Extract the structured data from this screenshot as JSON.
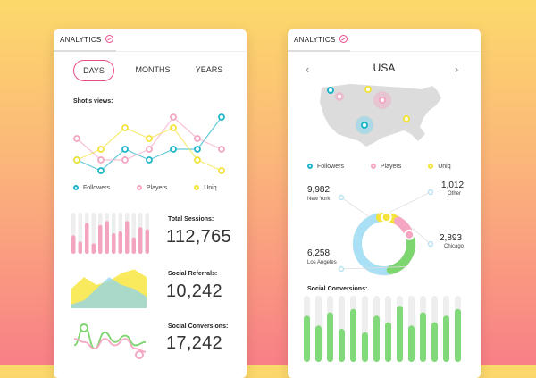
{
  "left_card": {
    "header_title": "ANALYTICS",
    "tabs": [
      {
        "label": "DAYS",
        "active": true
      },
      {
        "label": "MONTHS",
        "active": false
      },
      {
        "label": "YEARS",
        "active": false
      }
    ],
    "views_label": "Shot's views:",
    "legend": [
      {
        "label": "Followers",
        "color": "#1fb5c9"
      },
      {
        "label": "Players",
        "color": "#f4a6c3"
      },
      {
        "label": "Uniq",
        "color": "#f4e33a"
      }
    ],
    "stats": [
      {
        "label": "Total Sessions:",
        "value": "112,765"
      },
      {
        "label": "Social Referrals:",
        "value": "10,242"
      },
      {
        "label": "Social Conversions:",
        "value": "17,242"
      }
    ]
  },
  "right_card": {
    "header_title": "ANALYTICS",
    "country": "USA",
    "legend": [
      {
        "label": "Followers",
        "color": "#1fb5c9"
      },
      {
        "label": "Players",
        "color": "#f4a6c3"
      },
      {
        "label": "Uniq",
        "color": "#f4e33a"
      }
    ],
    "cities": [
      {
        "value": "9,982",
        "name": "New York"
      },
      {
        "value": "1,012",
        "name": "Other"
      },
      {
        "value": "2,893",
        "name": "Chicago"
      },
      {
        "value": "6,258",
        "name": "Los Angeles"
      }
    ],
    "conversions_label": "Social Conversions:"
  },
  "colors": {
    "accent": "#ea4c89",
    "followers": "#1fb5c9",
    "players": "#f4a6c3",
    "uniq": "#f4e33a",
    "green": "#7dd56f",
    "blue_light": "#a9e0f5"
  },
  "chart_data": [
    {
      "type": "line",
      "title": "Shot's views:",
      "x": [
        1,
        2,
        3,
        4,
        5,
        6,
        7
      ],
      "series": [
        {
          "name": "Followers",
          "values": [
            2,
            1,
            3,
            2,
            3,
            3,
            6
          ]
        },
        {
          "name": "Players",
          "values": [
            4,
            2,
            2,
            3,
            6,
            4,
            3
          ]
        },
        {
          "name": "Uniq",
          "values": [
            2,
            3,
            5,
            4,
            5,
            2,
            1
          ]
        }
      ]
    },
    {
      "type": "bar",
      "title": "Total Sessions:",
      "values": [
        45,
        30,
        75,
        25,
        70,
        80,
        50,
        55,
        80,
        40,
        65,
        60
      ]
    },
    {
      "type": "area",
      "title": "Social Referrals:",
      "series": [
        {
          "name": "yellow",
          "values": [
            5,
            8,
            6,
            7,
            9,
            10,
            8
          ]
        },
        {
          "name": "blue",
          "values": [
            1,
            2,
            5,
            8,
            6,
            5,
            3
          ]
        }
      ]
    },
    {
      "type": "line",
      "title": "Social Conversions:",
      "series": [
        {
          "name": "green",
          "values": [
            4,
            10,
            3,
            8,
            5,
            7,
            4,
            5
          ]
        },
        {
          "name": "pink",
          "values": [
            6,
            5,
            3,
            6,
            4,
            6,
            3,
            2
          ]
        }
      ]
    },
    {
      "type": "pie",
      "title": "",
      "categories": [
        "New York",
        "Other",
        "Chicago",
        "Los Angeles"
      ],
      "values": [
        9982,
        1012,
        2893,
        6258
      ]
    },
    {
      "type": "bar",
      "title": "Social Conversions:",
      "values": [
        70,
        55,
        75,
        50,
        80,
        45,
        70,
        60,
        85,
        55,
        75,
        60,
        70,
        80
      ]
    }
  ]
}
